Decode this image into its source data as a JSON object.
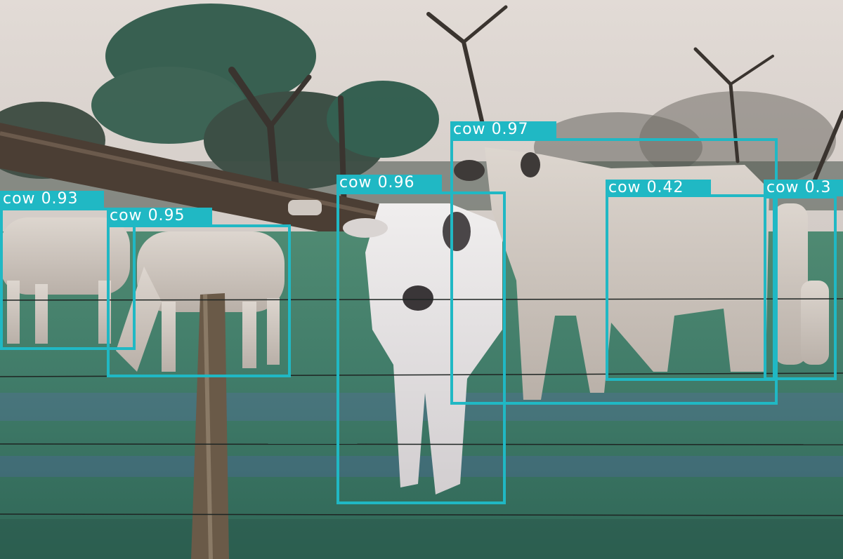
{
  "detections": [
    {
      "label": "cow",
      "score": "0.93"
    },
    {
      "label": "cow",
      "score": "0.95"
    },
    {
      "label": "cow",
      "score": "0.96"
    },
    {
      "label": "cow",
      "score": "0.97"
    },
    {
      "label": "cow",
      "score": "0.42"
    },
    {
      "label": "cow",
      "score": "0.3"
    }
  ],
  "colors": {
    "box": "#20b8c4",
    "label_text": "#ffffff"
  }
}
